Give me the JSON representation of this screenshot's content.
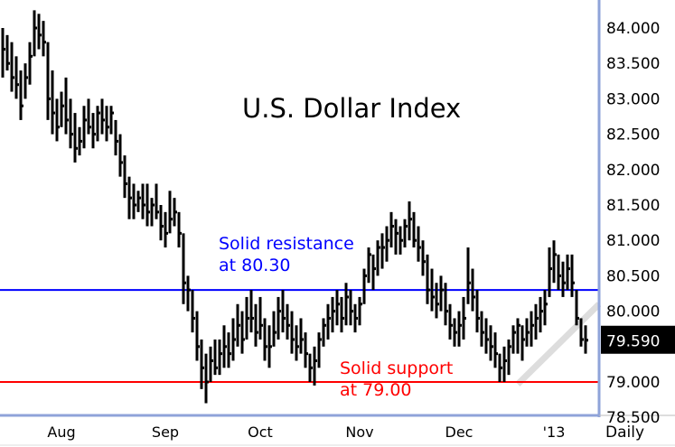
{
  "chart_data": {
    "type": "ohlc",
    "title": "U.S. Dollar Index",
    "period_label": "Daily",
    "bar_format": [
      "high",
      "low",
      "close"
    ],
    "bars": [
      [
        84.0,
        83.3,
        83.7
      ],
      [
        83.9,
        83.4,
        83.5
      ],
      [
        83.8,
        83.1,
        83.3
      ],
      [
        83.6,
        83.0,
        83.2
      ],
      [
        83.4,
        82.7,
        82.9
      ],
      [
        83.5,
        83.0,
        83.3
      ],
      [
        83.8,
        83.2,
        83.6
      ],
      [
        84.25,
        83.6,
        84.0
      ],
      [
        84.2,
        83.7,
        83.9
      ],
      [
        84.1,
        83.6,
        83.8
      ],
      [
        83.8,
        82.7,
        83.0
      ],
      [
        83.4,
        82.5,
        82.8
      ],
      [
        83.0,
        82.4,
        82.6
      ],
      [
        83.1,
        82.6,
        82.9
      ],
      [
        83.3,
        82.5,
        82.7
      ],
      [
        83.0,
        82.3,
        82.5
      ],
      [
        82.8,
        82.1,
        82.3
      ],
      [
        82.6,
        82.2,
        82.4
      ],
      [
        82.9,
        82.3,
        82.7
      ],
      [
        83.0,
        82.5,
        82.6
      ],
      [
        82.8,
        82.3,
        82.5
      ],
      [
        82.9,
        82.4,
        82.8
      ],
      [
        83.0,
        82.5,
        82.7
      ],
      [
        82.9,
        82.4,
        82.6
      ],
      [
        82.9,
        82.5,
        82.8
      ],
      [
        82.7,
        82.2,
        82.4
      ],
      [
        82.5,
        81.9,
        82.1
      ],
      [
        82.2,
        81.6,
        81.8
      ],
      [
        81.9,
        81.3,
        81.6
      ],
      [
        81.8,
        81.3,
        81.5
      ],
      [
        81.7,
        81.4,
        81.6
      ],
      [
        81.8,
        81.3,
        81.5
      ],
      [
        81.8,
        81.2,
        81.4
      ],
      [
        81.6,
        81.2,
        81.5
      ],
      [
        81.8,
        81.3,
        81.4
      ],
      [
        81.5,
        81.0,
        81.2
      ],
      [
        81.4,
        80.9,
        81.1
      ],
      [
        81.7,
        81.1,
        81.3
      ],
      [
        81.6,
        81.2,
        81.4
      ],
      [
        81.4,
        80.9,
        81.1
      ],
      [
        81.1,
        80.1,
        80.4
      ],
      [
        80.5,
        80.0,
        80.3
      ],
      [
        80.3,
        79.7,
        79.9
      ],
      [
        80.0,
        79.3,
        79.5
      ],
      [
        79.6,
        78.9,
        79.2
      ],
      [
        79.4,
        78.7,
        79.0
      ],
      [
        79.5,
        79.0,
        79.3
      ],
      [
        79.6,
        79.1,
        79.2
      ],
      [
        79.6,
        79.1,
        79.4
      ],
      [
        79.8,
        79.2,
        79.5
      ],
      [
        79.7,
        79.2,
        79.4
      ],
      [
        79.9,
        79.3,
        79.6
      ],
      [
        80.1,
        79.5,
        79.8
      ],
      [
        80.0,
        79.4,
        79.6
      ],
      [
        80.2,
        79.6,
        79.9
      ],
      [
        80.3,
        79.7,
        79.9
      ],
      [
        80.1,
        79.5,
        79.7
      ],
      [
        80.2,
        79.6,
        79.8
      ],
      [
        79.9,
        79.3,
        79.5
      ],
      [
        79.8,
        79.2,
        79.5
      ],
      [
        80.0,
        79.5,
        79.7
      ],
      [
        80.2,
        79.6,
        80.0
      ],
      [
        80.3,
        79.7,
        79.9
      ],
      [
        80.1,
        79.6,
        79.8
      ],
      [
        80.0,
        79.4,
        79.6
      ],
      [
        79.8,
        79.3,
        79.5
      ],
      [
        79.9,
        79.4,
        79.6
      ],
      [
        79.7,
        79.2,
        79.4
      ],
      [
        79.4,
        79.0,
        79.2
      ],
      [
        79.5,
        78.95,
        79.3
      ],
      [
        79.7,
        79.2,
        79.6
      ],
      [
        79.9,
        79.5,
        79.8
      ],
      [
        80.1,
        79.6,
        79.9
      ],
      [
        80.2,
        79.7,
        80.0
      ],
      [
        80.3,
        79.8,
        80.1
      ],
      [
        80.2,
        79.7,
        79.9
      ],
      [
        80.4,
        79.8,
        80.2
      ],
      [
        80.3,
        79.8,
        80.0
      ],
      [
        80.1,
        79.7,
        79.9
      ],
      [
        80.2,
        79.8,
        80.1
      ],
      [
        80.6,
        80.1,
        80.5
      ],
      [
        80.9,
        80.4,
        80.8
      ],
      [
        80.8,
        80.3,
        80.6
      ],
      [
        81.0,
        80.5,
        80.9
      ],
      [
        81.1,
        80.6,
        80.9
      ],
      [
        81.2,
        80.7,
        81.0
      ],
      [
        81.4,
        80.9,
        81.2
      ],
      [
        81.3,
        80.8,
        81.1
      ],
      [
        81.2,
        80.8,
        81.0
      ],
      [
        81.3,
        80.9,
        81.2
      ],
      [
        81.55,
        81.0,
        81.3
      ],
      [
        81.4,
        80.9,
        81.0
      ],
      [
        81.2,
        80.7,
        80.9
      ],
      [
        81.0,
        80.5,
        80.7
      ],
      [
        80.8,
        80.1,
        80.3
      ],
      [
        80.6,
        80.0,
        80.2
      ],
      [
        80.4,
        79.9,
        80.1
      ],
      [
        80.5,
        80.0,
        80.3
      ],
      [
        80.4,
        79.8,
        80.0
      ],
      [
        80.1,
        79.6,
        79.8
      ],
      [
        79.9,
        79.5,
        79.7
      ],
      [
        80.0,
        79.5,
        79.8
      ],
      [
        80.2,
        79.6,
        79.9
      ],
      [
        80.9,
        80.1,
        80.4
      ],
      [
        80.6,
        80.0,
        80.2
      ],
      [
        80.3,
        79.7,
        79.9
      ],
      [
        80.0,
        79.5,
        79.7
      ],
      [
        79.9,
        79.4,
        79.6
      ],
      [
        79.8,
        79.3,
        79.5
      ],
      [
        79.7,
        79.2,
        79.4
      ],
      [
        79.4,
        79.0,
        79.2
      ],
      [
        79.5,
        79.0,
        79.3
      ],
      [
        79.6,
        79.1,
        79.5
      ],
      [
        79.8,
        79.4,
        79.7
      ],
      [
        79.9,
        79.4,
        79.8
      ],
      [
        79.8,
        79.3,
        79.6
      ],
      [
        79.9,
        79.5,
        79.7
      ],
      [
        80.0,
        79.5,
        79.8
      ],
      [
        80.1,
        79.6,
        79.9
      ],
      [
        80.2,
        79.7,
        80.0
      ],
      [
        80.3,
        79.8,
        80.1
      ],
      [
        80.9,
        80.2,
        80.6
      ],
      [
        81.0,
        80.4,
        80.8
      ],
      [
        80.8,
        80.3,
        80.5
      ],
      [
        80.7,
        80.2,
        80.4
      ],
      [
        80.8,
        80.3,
        80.6
      ],
      [
        80.8,
        80.2,
        80.4
      ],
      [
        80.3,
        79.8,
        79.9
      ],
      [
        79.9,
        79.5,
        79.6
      ],
      [
        79.8,
        79.4,
        79.59
      ]
    ],
    "y_ticks": [
      "84.000",
      "83.500",
      "83.000",
      "82.500",
      "82.000",
      "81.500",
      "81.000",
      "80.500",
      "80.000",
      "79.000",
      "78.500"
    ],
    "y_tick_values": [
      84.0,
      83.5,
      83.0,
      82.5,
      82.0,
      81.5,
      81.0,
      80.5,
      80.0,
      79.0,
      78.5
    ],
    "ylim": [
      78.45,
      84.4
    ],
    "x_ticks": [
      {
        "label": "Aug",
        "bar_index": 13
      },
      {
        "label": "Sep",
        "bar_index": 36
      },
      {
        "label": "Oct",
        "bar_index": 57
      },
      {
        "label": "Nov",
        "bar_index": 79
      },
      {
        "label": "Dec",
        "bar_index": 101
      },
      {
        "label": "'13",
        "bar_index": 122
      }
    ],
    "last_price": {
      "label": "79.590",
      "value": 79.59,
      "bg": "#000000",
      "color": "#ffffff"
    },
    "resistance": {
      "value": 80.3,
      "color": "#0000ff",
      "label_line1": "Solid resistance",
      "label_line2": "at 80.30"
    },
    "support": {
      "value": 79.0,
      "color": "#ff0000",
      "label_line1": "Solid support",
      "label_line2": "at 79.00"
    },
    "trendline": {
      "from": [
        114,
        78.97
      ],
      "to": [
        132,
        80.1
      ],
      "color": "#dddddd"
    },
    "axis_color": "#8fa3d9",
    "grid": false
  }
}
